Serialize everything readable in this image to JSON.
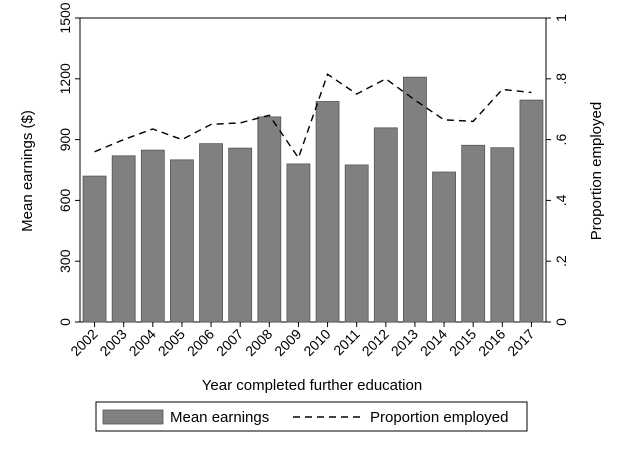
{
  "chart_data": {
    "type": "bar",
    "categories": [
      "2002",
      "2003",
      "2004",
      "2005",
      "2006",
      "2007",
      "2008",
      "2009",
      "2010",
      "2011",
      "2012",
      "2013",
      "2014",
      "2015",
      "2016",
      "2017"
    ],
    "series": [
      {
        "name": "Mean earnings",
        "type": "bar",
        "axis": "left",
        "values": [
          720,
          820,
          848,
          800,
          880,
          858,
          1012,
          780,
          1088,
          775,
          958,
          1208,
          740,
          872,
          860,
          1095
        ]
      },
      {
        "name": "Proportion employed",
        "type": "line",
        "style": "dashed",
        "axis": "right",
        "values": [
          0.56,
          0.6,
          0.635,
          0.6,
          0.65,
          0.655,
          0.68,
          0.54,
          0.815,
          0.75,
          0.8,
          0.73,
          0.665,
          0.66,
          0.765,
          0.755
        ]
      }
    ],
    "xlabel": "Year completed further education",
    "ylabel_left": "Mean earnings ($)",
    "ylabel_right": "Proportion employed",
    "ylim_left": [
      0,
      1500
    ],
    "yticks_left": [
      "0",
      "300",
      "600",
      "900",
      "1200",
      "1500"
    ],
    "ylim_right": [
      0,
      1
    ],
    "yticks_right": [
      "0",
      ".2",
      ".4",
      ".6",
      ".8",
      "1"
    ],
    "legend_position": "bottom",
    "grid": false,
    "colors": {
      "bar": "#808080",
      "bar_edge": "#555555",
      "line": "#000000"
    }
  }
}
